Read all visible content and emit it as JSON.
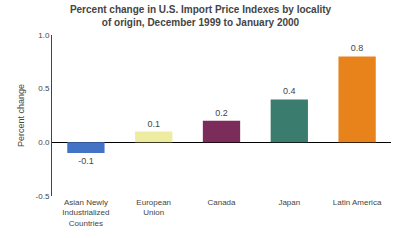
{
  "chart_data": {
    "type": "bar",
    "title": "Percent change in U.S. Import Price Indexes by locality\nof origin, December 1999 to January 2000",
    "ylabel": "Percent change",
    "categories": [
      "Asian Newly\nIndustrialized\nCountries",
      "European\nUnion",
      "Canada",
      "Japan",
      "Latin America"
    ],
    "values": [
      -0.1,
      0.1,
      0.2,
      0.4,
      0.8
    ],
    "colors": [
      "#4472C4",
      "#EEECA1",
      "#7B2C5A",
      "#3A7D6E",
      "#E8821A"
    ],
    "ylim": [
      -0.5,
      1.0
    ],
    "yticks": [
      -0.5,
      {
        "value": 0,
        "label": "0.0"
      },
      0.5,
      {
        "value": 1,
        "label": "1.0"
      }
    ],
    "data_labels": true,
    "grid": false
  }
}
